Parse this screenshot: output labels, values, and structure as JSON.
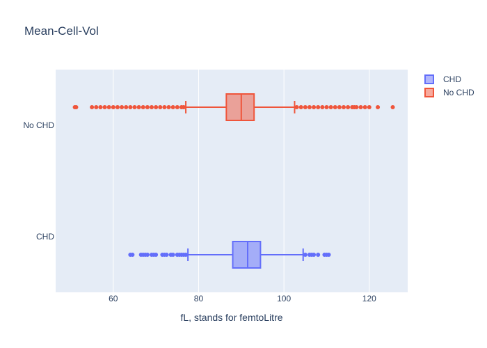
{
  "chart_data": {
    "type": "box",
    "title": "Mean-Cell-Vol",
    "xlabel": "fL, stands for femtoLitre",
    "ylabel": "",
    "orientation": "horizontal",
    "xlim": [
      46.5,
      129
    ],
    "x_ticks": [
      60,
      80,
      100,
      120
    ],
    "grid": true,
    "legend_position": "top-right",
    "series": [
      {
        "name": "CHD",
        "color": "#636efa",
        "stats": {
          "lower_fence": 77.5,
          "q1": 88,
          "median": 91.5,
          "q3": 94.5,
          "upper_fence": 104.5
        },
        "outliers": [
          64,
          64.5,
          66.5,
          67,
          67.5,
          68,
          69,
          69.5,
          70,
          71.5,
          72,
          72.5,
          73.5,
          74,
          75,
          75.5,
          76,
          76.5,
          77,
          105,
          106,
          106.5,
          107,
          108,
          109.5,
          110,
          110.5
        ]
      },
      {
        "name": "No CHD",
        "color": "#ef553b",
        "stats": {
          "lower_fence": 77,
          "q1": 86.5,
          "median": 90,
          "q3": 93,
          "upper_fence": 102.5
        },
        "outliers": [
          51,
          51.3,
          55,
          56,
          57,
          58,
          59,
          60,
          61,
          62,
          63,
          64,
          65,
          66,
          67,
          68,
          69,
          70,
          71,
          72,
          73,
          74,
          75,
          76,
          76.5,
          103,
          104,
          105,
          106,
          107,
          108,
          109,
          110,
          111,
          112,
          113,
          114,
          115,
          116,
          116.5,
          117,
          118,
          119,
          120,
          122,
          125.5
        ]
      }
    ],
    "categories": [
      "No CHD",
      "CHD"
    ]
  }
}
